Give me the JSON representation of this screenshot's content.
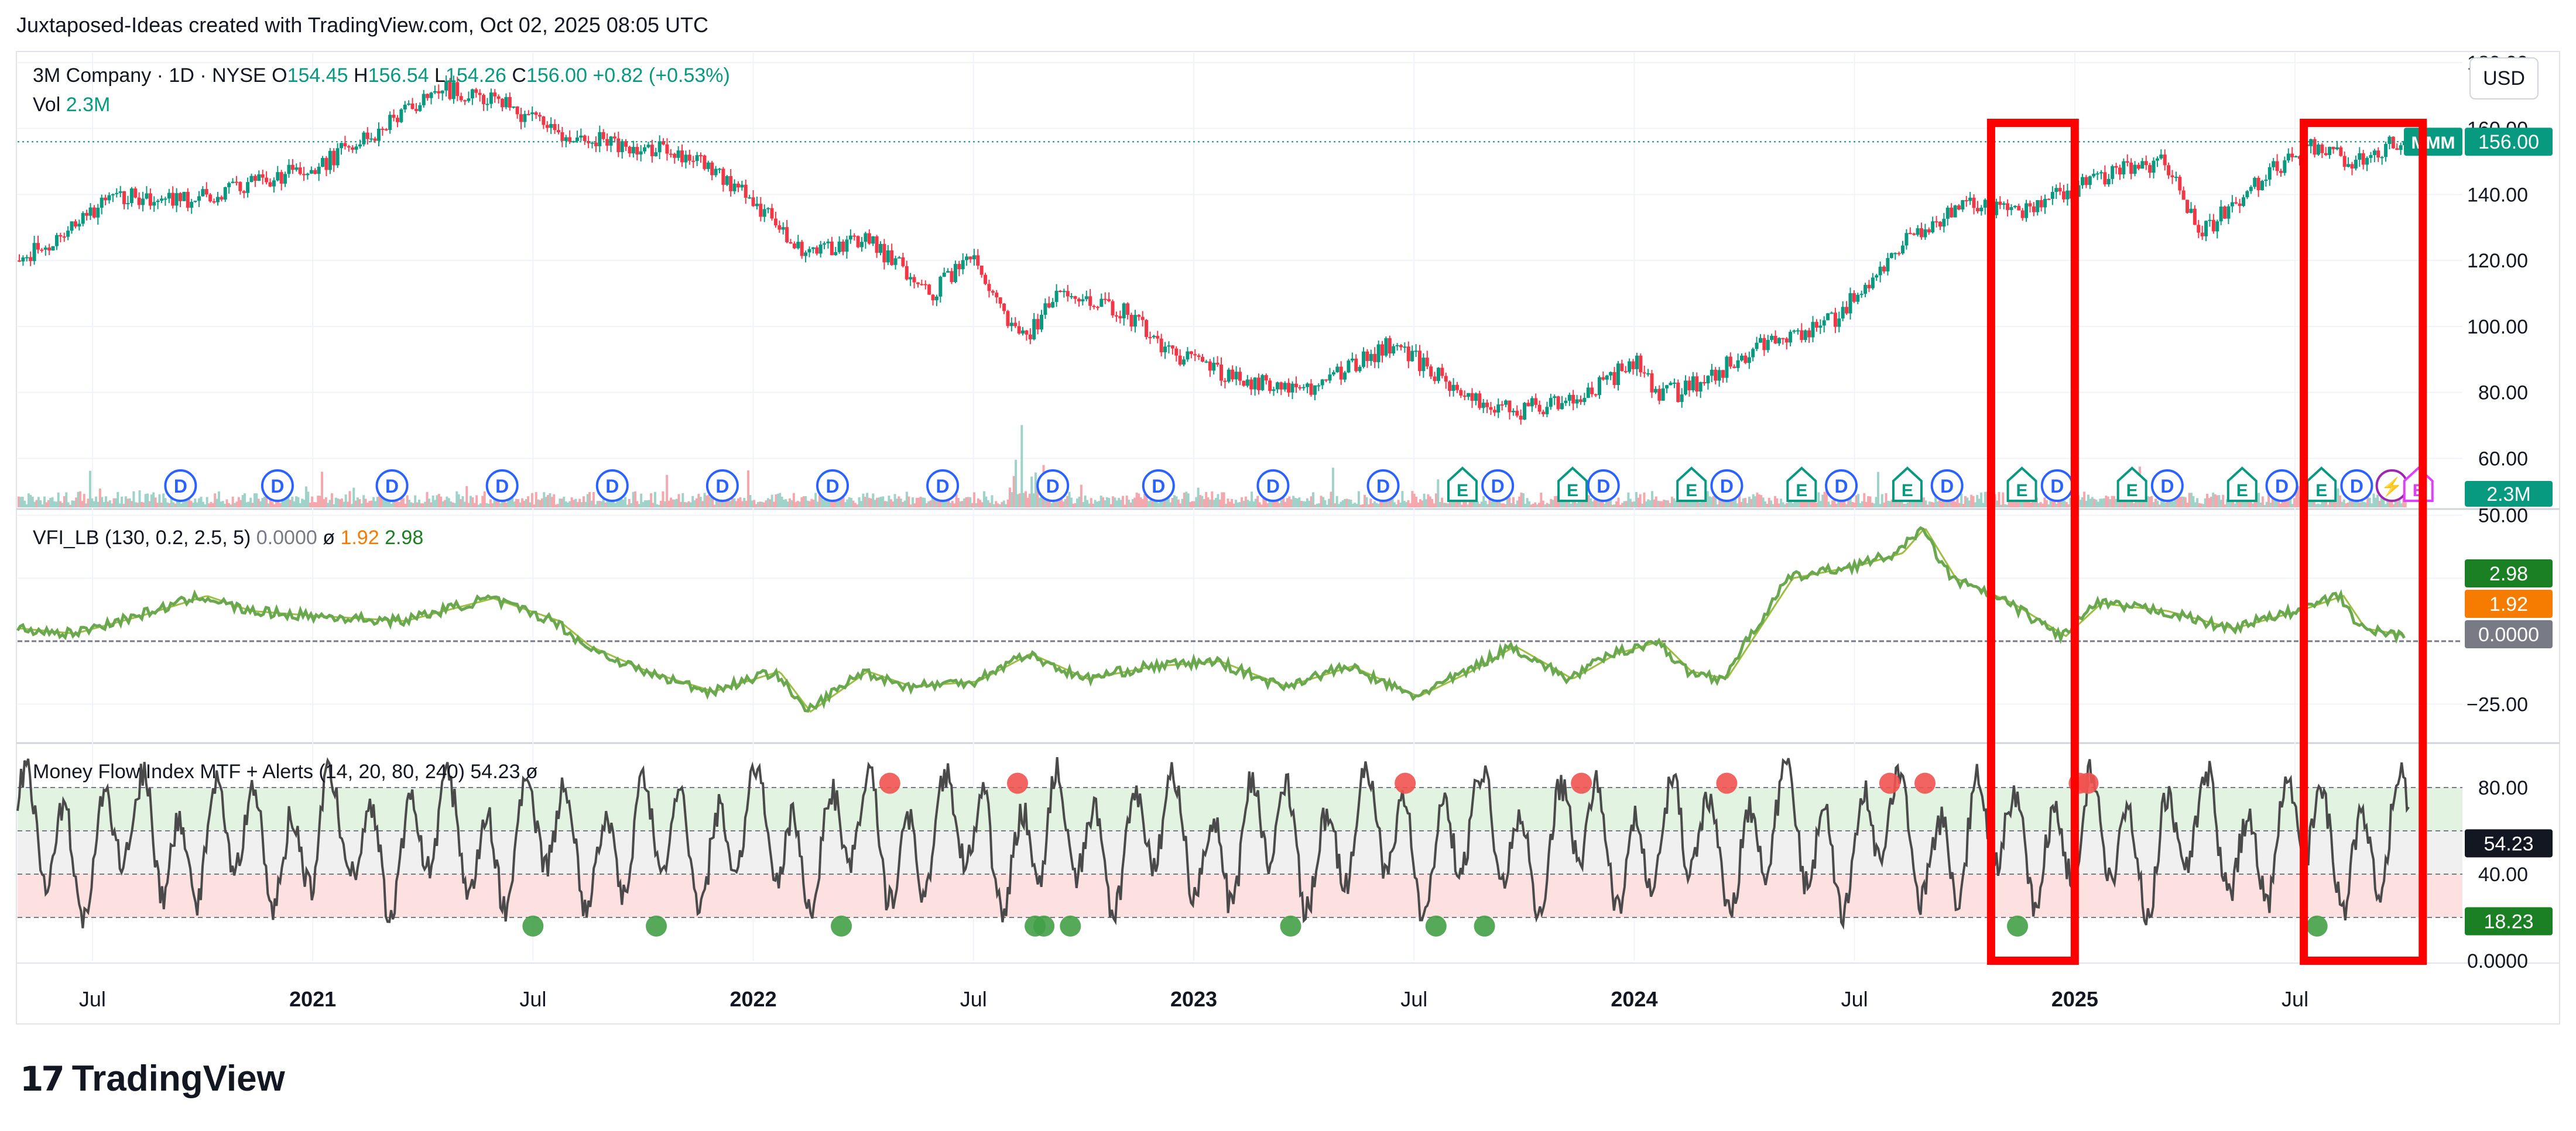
{
  "attribution": "Juxtaposed-Ideas created with TradingView.com, Oct 02, 2025 08:05 UTC",
  "brand": {
    "logo_mark": "17",
    "name": "TradingView"
  },
  "currency": "USD",
  "colors": {
    "up": "#089981",
    "down": "#f23645",
    "vfi": "#6aa84f",
    "vfi_signal": "#9cbf3f",
    "mfi_line": "#4a4a4a",
    "highlight_box": "#ff0000",
    "grid": "#f0f3fa",
    "text": "#131722"
  },
  "chart_data": [
    {
      "type": "candlestick",
      "title": "3M Company · 1D · NYSE",
      "legend": {
        "symbol": "3M Company · 1D · NYSE",
        "open_label": "O",
        "open": "154.45",
        "high_label": "H",
        "high": "156.54",
        "low_label": "L",
        "low": "154.26",
        "close_label": "C",
        "close": "156.00",
        "change": "+0.82 (+0.53%)",
        "vol_label": "Vol",
        "vol": "2.3M"
      },
      "y_ticks": [
        "180.00",
        "160.00",
        "140.00",
        "120.00",
        "100.00",
        "80.00",
        "60.00"
      ],
      "ylim": [
        45,
        183
      ],
      "last_price": {
        "ticker": "MMM",
        "value": "156.00",
        "number": 156.0
      },
      "volume_badge": "2.3M",
      "price_path": {
        "note": "approximate close path, x in years (decimal)",
        "x": [
          2020.33,
          2020.45,
          2020.55,
          2020.7,
          2020.85,
          2021.0,
          2021.15,
          2021.3,
          2021.42,
          2021.55,
          2021.7,
          2021.85,
          2022.0,
          2022.08,
          2022.15,
          2022.25,
          2022.4,
          2022.5,
          2022.6,
          2022.65,
          2022.7,
          2022.83,
          2022.95,
          2023.1,
          2023.25,
          2023.45,
          2023.6,
          2023.72,
          2023.9,
          2024.0,
          2024.04,
          2024.1,
          2024.3,
          2024.46,
          2024.6,
          2024.75,
          2024.85,
          2025.0,
          2025.1,
          2025.2,
          2025.28,
          2025.45,
          2025.53,
          2025.62,
          2025.74
        ],
        "y": [
          120,
          130,
          140,
          138,
          143,
          148,
          160,
          172,
          168,
          158,
          155,
          152,
          138,
          125,
          123,
          127,
          110,
          122,
          95,
          103,
          112,
          105,
          92,
          84,
          80,
          95,
          80,
          74,
          80,
          90,
          80,
          80,
          95,
          103,
          125,
          138,
          134,
          142,
          148,
          150,
          128,
          148,
          155,
          150,
          156
        ]
      },
      "events": [
        {
          "t": 2020.7,
          "label": "D"
        },
        {
          "t": 2020.92,
          "label": "D"
        },
        {
          "t": 2021.18,
          "label": "D"
        },
        {
          "t": 2021.43,
          "label": "D"
        },
        {
          "t": 2021.68,
          "label": "D"
        },
        {
          "t": 2021.93,
          "label": "D"
        },
        {
          "t": 2022.18,
          "label": "D"
        },
        {
          "t": 2022.43,
          "label": "D"
        },
        {
          "t": 2022.68,
          "label": "D"
        },
        {
          "t": 2022.92,
          "label": "D"
        },
        {
          "t": 2023.18,
          "label": "D"
        },
        {
          "t": 2023.43,
          "label": "D"
        },
        {
          "t": 2023.61,
          "label": "E"
        },
        {
          "t": 2023.69,
          "label": "D"
        },
        {
          "t": 2023.86,
          "label": "E"
        },
        {
          "t": 2023.93,
          "label": "D"
        },
        {
          "t": 2024.13,
          "label": "E"
        },
        {
          "t": 2024.21,
          "label": "D"
        },
        {
          "t": 2024.38,
          "label": "E"
        },
        {
          "t": 2024.47,
          "label": "D"
        },
        {
          "t": 2024.62,
          "label": "E"
        },
        {
          "t": 2024.71,
          "label": "D"
        },
        {
          "t": 2024.88,
          "label": "E"
        },
        {
          "t": 2024.96,
          "label": "D"
        },
        {
          "t": 2025.13,
          "label": "E"
        },
        {
          "t": 2025.21,
          "label": "D"
        },
        {
          "t": 2025.38,
          "label": "E"
        },
        {
          "t": 2025.47,
          "label": "D"
        },
        {
          "t": 2025.56,
          "label": "E"
        },
        {
          "t": 2025.64,
          "label": "D"
        },
        {
          "t": 2025.72,
          "label": "⚡"
        },
        {
          "t": 2025.78,
          "label": "E"
        }
      ]
    },
    {
      "type": "line",
      "title": "VFI_LB (130, 0.2, 2.5, 5)",
      "legend": {
        "name": "VFI_LB (130, 0.2, 2.5, 5)",
        "v0": "0.0000",
        "symbol": "ø",
        "v1": "1.92",
        "v2": "2.98"
      },
      "y_ticks": [
        "50.00",
        "25.00",
        "−25.00"
      ],
      "ylim": [
        -40,
        52
      ],
      "badges": [
        {
          "value": "2.98",
          "number": 2.98,
          "color": "#1b7f23"
        },
        {
          "value": "1.92",
          "number": 1.92,
          "color": "#f57c00"
        },
        {
          "value": "0.0000",
          "number": 0.0,
          "color": "#787b86"
        }
      ],
      "series": {
        "x": [
          2020.33,
          2020.45,
          2020.6,
          2020.75,
          2020.85,
          2021.0,
          2021.2,
          2021.4,
          2021.55,
          2021.62,
          2021.75,
          2021.9,
          2022.05,
          2022.12,
          2022.25,
          2022.35,
          2022.5,
          2022.62,
          2022.75,
          2022.9,
          2023.05,
          2023.2,
          2023.35,
          2023.5,
          2023.62,
          2023.72,
          2023.85,
          2023.95,
          2024.05,
          2024.12,
          2024.2,
          2024.35,
          2024.5,
          2024.6,
          2024.65,
          2024.72,
          2024.85,
          2024.97,
          2025.05,
          2025.2,
          2025.35,
          2025.5,
          2025.6,
          2025.65,
          2025.75
        ],
        "y": [
          5,
          3,
          10,
          18,
          12,
          10,
          8,
          17,
          8,
          -2,
          -12,
          -20,
          -12,
          -28,
          -12,
          -18,
          -16,
          -5,
          -15,
          -10,
          -8,
          -18,
          -10,
          -22,
          -12,
          -2,
          -15,
          -5,
          0,
          -12,
          -15,
          25,
          30,
          35,
          45,
          25,
          15,
          2,
          15,
          12,
          5,
          12,
          18,
          5,
          2
        ]
      }
    },
    {
      "type": "line",
      "title": "Money Flow Index MTF + Alerts (14, 20, 80, 240)",
      "legend": {
        "name": "Money Flow Index MTF + Alerts (14, 20, 80, 240)",
        "value": "54.23",
        "symbol": "ø"
      },
      "y_ticks": [
        "80.00",
        "40.00",
        "0.0000"
      ],
      "ylim": [
        0,
        100
      ],
      "bands": {
        "overbought": 80,
        "mid_upper": 60,
        "mid_lower": 40,
        "oversold": 20
      },
      "badges": [
        {
          "value": "54.23",
          "number": 54.23,
          "color": "#131722"
        },
        {
          "value": "18.23",
          "number": 18.23,
          "color": "#1b7f23"
        }
      ],
      "overbought_alerts": [
        2022.31,
        2022.6,
        2023.48,
        2023.88,
        2024.21,
        2024.58,
        2024.66,
        2025.01,
        2025.03
      ],
      "oversold_alerts": [
        2021.5,
        2021.78,
        2022.2,
        2022.64,
        2022.66,
        2022.72,
        2023.22,
        2023.55,
        2023.66,
        2024.87,
        2025.55
      ]
    }
  ],
  "x_axis": {
    "labels": [
      "Jul",
      "2021",
      "Jul",
      "2022",
      "Jul",
      "2023",
      "Jul",
      "2024",
      "Jul",
      "2025",
      "Jul"
    ],
    "positions": [
      2020.5,
      2021.0,
      2021.5,
      2022.0,
      2022.5,
      2023.0,
      2023.5,
      2024.0,
      2024.5,
      2025.0,
      2025.5
    ],
    "range": [
      2020.33,
      2025.88
    ]
  },
  "highlights": [
    {
      "t0": 2024.81,
      "t1": 2025.0,
      "label": "highlight 1"
    },
    {
      "t0": 2025.52,
      "t1": 2025.79,
      "label": "highlight 2"
    }
  ]
}
